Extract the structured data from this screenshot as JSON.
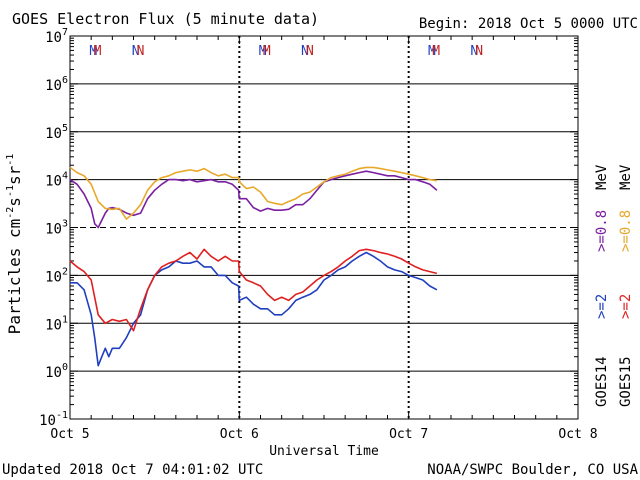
{
  "chart_data": {
    "type": "line",
    "title": "GOES Electron Flux (5 minute data)",
    "begin": "Begin: 2018 Oct 5 0000 UTC",
    "xlabel": "Universal Time",
    "ylabel_main": "Particles cm",
    "ylabel_exp1": "-2",
    "ylabel_mid": "s",
    "ylabel_exp2": "-1",
    "ylabel_end": "sr",
    "ylabel_exp3": "-1",
    "x_ticks": [
      "Oct 5",
      "Oct 6",
      "Oct 7",
      "Oct 8"
    ],
    "xlim_hours": [
      0,
      72
    ],
    "ylim": [
      0.1,
      10000000
    ],
    "y_scale": "log",
    "y_ticks": [
      {
        "base": "10",
        "exp": "7"
      },
      {
        "base": "10",
        "exp": "6"
      },
      {
        "base": "10",
        "exp": "5"
      },
      {
        "base": "10",
        "exp": "4"
      },
      {
        "base": "10",
        "exp": "3"
      },
      {
        "base": "10",
        "exp": "2"
      },
      {
        "base": "10",
        "exp": "1"
      },
      {
        "base": "10",
        "exp": "0"
      },
      {
        "base": "10",
        "exp": "-1"
      }
    ],
    "threshold": 1000,
    "marks": [
      {
        "text": "M",
        "hour": 3.3,
        "color": "#1f3fbf"
      },
      {
        "text": "M",
        "hour": 3.9,
        "color": "#c02020"
      },
      {
        "text": "N",
        "hour": 9.3,
        "color": "#1f3fbf"
      },
      {
        "text": "N",
        "hour": 10.0,
        "color": "#c02020"
      },
      {
        "text": "M",
        "hour": 27.3,
        "color": "#1f3fbf"
      },
      {
        "text": "M",
        "hour": 27.9,
        "color": "#c02020"
      },
      {
        "text": "N",
        "hour": 33.3,
        "color": "#1f3fbf"
      },
      {
        "text": "N",
        "hour": 34.0,
        "color": "#c02020"
      },
      {
        "text": "M",
        "hour": 51.3,
        "color": "#1f3fbf"
      },
      {
        "text": "M",
        "hour": 51.9,
        "color": "#c02020"
      },
      {
        "text": "N",
        "hour": 57.3,
        "color": "#1f3fbf"
      },
      {
        "text": "N",
        "hour": 58.0,
        "color": "#c02020"
      }
    ],
    "series": [
      {
        "name": ">=0.8 MeV",
        "satellite": "GOES14",
        "color": "#7b1fa2",
        "x_hours": [
          0,
          1,
          2,
          3,
          3.5,
          4,
          5,
          5.5,
          6,
          7,
          8,
          9,
          10,
          11,
          12,
          13,
          14,
          15,
          16,
          17,
          18,
          19,
          20,
          21,
          22,
          23,
          23.9,
          24,
          25,
          26,
          27,
          28,
          29,
          30,
          31,
          32,
          33,
          34,
          35,
          36,
          37,
          38,
          39,
          40,
          41,
          42,
          43,
          44,
          45,
          46,
          47,
          48,
          49,
          50,
          51,
          52
        ],
        "values": [
          10000,
          8000,
          5000,
          2500,
          1200,
          1000,
          2000,
          2500,
          2600,
          2400,
          2000,
          1800,
          2000,
          4000,
          6000,
          8000,
          10000,
          10000,
          9500,
          10000,
          9000,
          9500,
          10000,
          9000,
          9000,
          8000,
          6000,
          4000,
          4000,
          2600,
          2200,
          2500,
          2300,
          2300,
          2400,
          3000,
          3000,
          4000,
          6000,
          9000,
          10000,
          11000,
          12000,
          13000,
          14000,
          15000,
          14000,
          13000,
          12000,
          12000,
          11000,
          10000,
          10000,
          9000,
          8000,
          6000
        ]
      },
      {
        "name": ">=0.8 MeV",
        "satellite": "GOES15",
        "color": "#e8a82a",
        "x_hours": [
          0,
          1,
          2,
          3,
          4,
          5,
          6,
          7,
          8,
          9,
          10,
          11,
          12,
          13,
          14,
          15,
          16,
          17,
          18,
          19,
          20,
          21,
          22,
          23,
          23.9,
          24,
          25,
          26,
          27,
          28,
          29,
          30,
          31,
          32,
          33,
          34,
          35,
          36,
          37,
          38,
          39,
          40,
          41,
          42,
          43,
          44,
          45,
          46,
          47,
          48,
          49,
          50,
          51,
          52
        ],
        "values": [
          18000,
          14000,
          12000,
          8000,
          3500,
          2500,
          2400,
          2500,
          1500,
          2000,
          3000,
          6000,
          9000,
          11000,
          12000,
          14000,
          15000,
          16000,
          15000,
          17000,
          14000,
          12000,
          13000,
          11000,
          11000,
          9000,
          6500,
          7000,
          5500,
          3500,
          3200,
          3000,
          3500,
          4000,
          5000,
          5500,
          7000,
          9000,
          11000,
          12000,
          13000,
          15000,
          17000,
          18000,
          18000,
          17000,
          16000,
          15000,
          14000,
          13000,
          12000,
          11000,
          10000,
          9500
        ]
      },
      {
        "name": ">=2 MeV",
        "satellite": "GOES14",
        "color": "#1f3fbf",
        "x_hours": [
          0,
          1,
          2,
          3,
          3.5,
          4,
          4.5,
          5,
          5.5,
          6,
          7,
          8,
          9,
          10,
          11,
          12,
          13,
          14,
          15,
          16,
          17,
          18,
          19,
          20,
          21,
          22,
          23,
          23.9,
          24,
          25,
          26,
          27,
          28,
          29,
          30,
          31,
          32,
          33,
          34,
          35,
          36,
          37,
          38,
          39,
          40,
          41,
          42,
          43,
          44,
          45,
          46,
          47,
          48,
          49,
          50,
          51,
          52
        ],
        "values": [
          70,
          70,
          50,
          15,
          5,
          1.3,
          2,
          3,
          2,
          3,
          3,
          5,
          10,
          15,
          50,
          100,
          130,
          150,
          200,
          180,
          180,
          200,
          150,
          150,
          100,
          100,
          70,
          60,
          30,
          35,
          25,
          20,
          20,
          15,
          15,
          20,
          30,
          35,
          40,
          50,
          80,
          100,
          130,
          150,
          200,
          250,
          300,
          250,
          200,
          150,
          130,
          120,
          100,
          90,
          80,
          60,
          50
        ]
      },
      {
        "name": ">=2 MeV",
        "satellite": "GOES15",
        "color": "#e02020",
        "x_hours": [
          0,
          1,
          2,
          3,
          4,
          5,
          6,
          7,
          8,
          9,
          10,
          11,
          12,
          13,
          14,
          15,
          16,
          17,
          18,
          19,
          20,
          21,
          22,
          23,
          23.9,
          24,
          25,
          26,
          27,
          28,
          29,
          30,
          31,
          32,
          33,
          34,
          35,
          36,
          37,
          38,
          39,
          40,
          41,
          42,
          43,
          44,
          45,
          46,
          47,
          48,
          49,
          50,
          51,
          52
        ],
        "values": [
          200,
          150,
          120,
          80,
          15,
          10,
          12,
          11,
          12,
          7,
          20,
          50,
          100,
          150,
          180,
          200,
          250,
          300,
          220,
          350,
          250,
          200,
          250,
          200,
          200,
          120,
          80,
          70,
          60,
          40,
          30,
          35,
          30,
          40,
          45,
          60,
          80,
          100,
          120,
          150,
          200,
          250,
          330,
          350,
          330,
          300,
          280,
          250,
          220,
          180,
          150,
          130,
          120,
          110
        ]
      }
    ],
    "legend": {
      "goes14": "GOES14",
      "goes15": "GOES15",
      "s1": ">=2",
      "s2": ">=2",
      "s3": ">=0.8",
      "s4": ">=0.8",
      "unit": "MeV"
    }
  },
  "footer": {
    "updated": "Updated 2018 Oct  7 04:01:02 UTC",
    "credit": "NOAA/SWPC Boulder, CO USA"
  }
}
